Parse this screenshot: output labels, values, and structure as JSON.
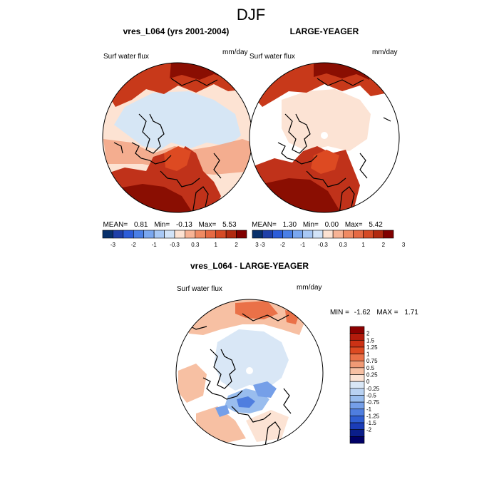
{
  "figure": {
    "title": "DJF"
  },
  "colors": {
    "polar_fill": "#d6e6f5",
    "coast": "#000000",
    "palette_top": [
      "#08306b",
      "#1f3fa8",
      "#2c5cd8",
      "#4a7fe6",
      "#7aa7ef",
      "#a8c8f5",
      "#d2e3f8",
      "#fde2d2",
      "#f7b395",
      "#ef8a63",
      "#e56a44",
      "#d44a25",
      "#b02a10",
      "#800000"
    ],
    "palette_right": [
      "#8b0000",
      "#b31b0c",
      "#cc3215",
      "#dd4a22",
      "#ea7148",
      "#f19a75",
      "#f7c0a3",
      "#fce3d4",
      "#d9e7f6",
      "#b9d2f2",
      "#99bdee",
      "#759fe8",
      "#4f7edf",
      "#2f5ed2",
      "#1b3db8",
      "#0a1e8a",
      "#000066"
    ]
  },
  "panels": [
    {
      "title": "vres_L064 (yrs 2001-2004)",
      "field_label": "Surf water flux",
      "units": "mm/day",
      "stats": {
        "mean_label": "MEAN=",
        "mean": "0.81",
        "min_label": "Min=",
        "min": "-0.13",
        "max_label": "Max=",
        "max": "5.53"
      },
      "colorbar_labels": [
        "-3",
        "-2",
        "-1",
        "-0.3",
        "0.3",
        "1",
        "2",
        "3"
      ]
    },
    {
      "title": "LARGE-YEAGER",
      "field_label": "Surf water flux",
      "units": "mm/day",
      "stats": {
        "mean_label": "MEAN=",
        "mean": "1.30",
        "min_label": "Min=",
        "min": "0.00",
        "max_label": "Max=",
        "max": "5.42"
      },
      "colorbar_labels": [
        "-3",
        "-2",
        "-1",
        "-0.3",
        "0.3",
        "1",
        "2",
        "3"
      ]
    },
    {
      "title": "vres_L064 - LARGE-YEAGER",
      "field_label": "Surf water flux",
      "units": "mm/day",
      "stats": {
        "min_label": "MIN =",
        "min": "-1.62",
        "max_label": "MAX =",
        "max": "1.71"
      },
      "colorbar_labels": [
        "2",
        "1.5",
        "1.25",
        "1",
        "0.75",
        "0.5",
        "0.25",
        "0",
        "-0.25",
        "-0.5",
        "-0.75",
        "-1",
        "-1.25",
        "-1.5",
        "-2"
      ]
    }
  ]
}
